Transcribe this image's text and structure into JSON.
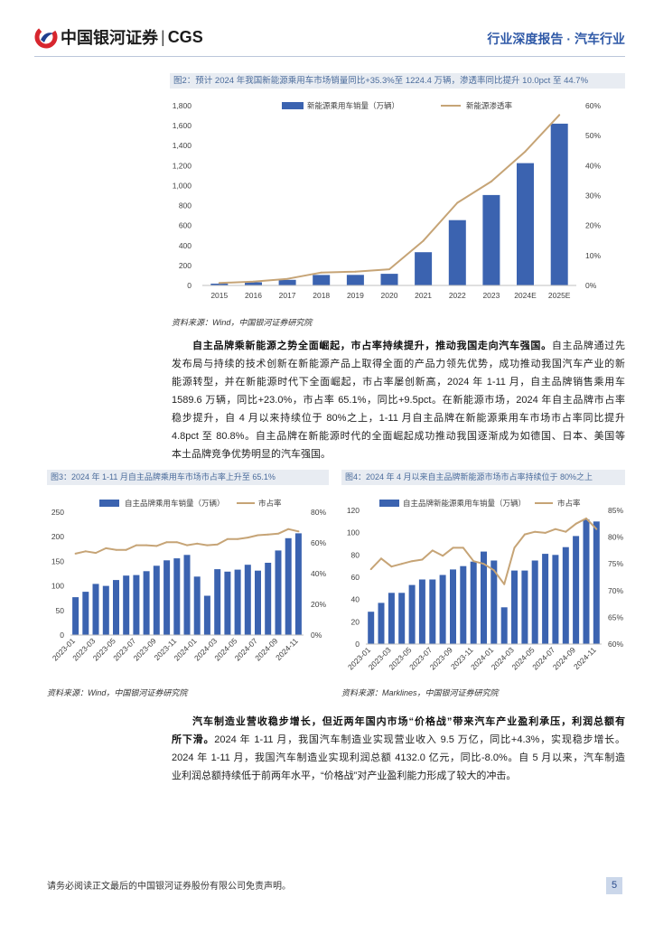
{
  "header": {
    "logo_cn": "中国银河证券",
    "logo_sep": "|",
    "logo_en": "CGS",
    "report_type": "行业深度报告",
    "dot": "·",
    "industry": "汽车行业"
  },
  "colors": {
    "bar": "#3b63b0",
    "line": "#c6a476",
    "accent": "#2f59a7",
    "brand_red": "#d7262e"
  },
  "chart_data": [
    {
      "type": "bar",
      "title": "图2：预计 2024 年我国新能源乘用车市场销量同比+35.3%至 1224.4 万辆，渗透率同比提升 10.0pct 至 44.7%",
      "categories": [
        "2015",
        "2016",
        "2017",
        "2018",
        "2019",
        "2020",
        "2021",
        "2022",
        "2023",
        "2024E",
        "2025E"
      ],
      "series": [
        {
          "name": "新能源乘用车销量（万辆）",
          "type": "bar",
          "values": [
            18,
            32,
            56,
            105,
            106,
            117,
            333,
            654,
            905,
            1224.4,
            1620
          ]
        },
        {
          "name": "新能源渗透率",
          "type": "line",
          "values": [
            0.8,
            1.3,
            2.2,
            4.3,
            4.6,
            5.4,
            14.9,
            27.6,
            34.7,
            44.7,
            56.9
          ]
        }
      ],
      "y_left": {
        "ticks": [
          "0",
          "200",
          "400",
          "600",
          "800",
          "1,000",
          "1,200",
          "1,400",
          "1,600",
          "1,800"
        ],
        "lim": [
          0,
          1800
        ]
      },
      "y_right": {
        "ticks": [
          "0%",
          "10%",
          "20%",
          "30%",
          "40%",
          "50%",
          "60%"
        ],
        "lim": [
          0,
          60
        ]
      },
      "source": "资料来源：Wind，中国银河证券研究院"
    },
    {
      "type": "bar",
      "title": "图3：2024 年 1-11 月自主品牌乘用车市场市占率上升至 65.1%",
      "x_tick_labels": [
        "2023-01",
        "2023-03",
        "2023-05",
        "2023-07",
        "2023-09",
        "2023-11",
        "2024-01",
        "2024-03",
        "2024-05",
        "2024-07",
        "2024-09",
        "2024-11"
      ],
      "series": [
        {
          "name": "自主品牌乘用车销量（万辆）",
          "type": "bar",
          "values": [
            77,
            88,
            104,
            100,
            112,
            121,
            122,
            130,
            141,
            152,
            156,
            163,
            119,
            80,
            134,
            129,
            133,
            143,
            131,
            147,
            172,
            197,
            207
          ]
        },
        {
          "name": "市占率",
          "type": "line",
          "values": [
            53,
            54.5,
            53.5,
            56.5,
            55.5,
            55.5,
            58.5,
            58.5,
            58,
            60.5,
            60.5,
            58.5,
            59.5,
            58.5,
            59,
            62.5,
            62.5,
            63.5,
            65,
            65.5,
            66,
            69,
            67.5
          ]
        }
      ],
      "y_left": {
        "ticks": [
          "0",
          "50",
          "100",
          "150",
          "200",
          "250"
        ],
        "lim": [
          0,
          250
        ]
      },
      "y_right": {
        "ticks": [
          "0%",
          "20%",
          "40%",
          "60%",
          "80%"
        ],
        "lim": [
          0,
          80
        ]
      },
      "source": "资料来源：Wind，中国银河证券研究院"
    },
    {
      "type": "bar",
      "title": "图4：2024 年 4 月以来自主品牌新能源市场市占率持续位于 80%之上",
      "x_tick_labels": [
        "2023-01",
        "2023-03",
        "2023-05",
        "2023-07",
        "2023-09",
        "2023-11",
        "2024-01",
        "2024-03",
        "2024-05",
        "2024-07",
        "2024-09",
        "2024-11"
      ],
      "series": [
        {
          "name": "自主品牌新能源乘用车销量（万辆）",
          "type": "bar",
          "values": [
            29,
            37,
            46,
            46,
            53,
            58,
            58,
            62,
            67,
            70,
            74,
            83,
            75,
            33,
            66,
            66,
            75,
            81,
            80,
            87,
            97,
            112,
            110
          ]
        },
        {
          "name": "市占率",
          "type": "line",
          "values": [
            74,
            76,
            74.5,
            75,
            75.5,
            75.8,
            77.5,
            76.5,
            78,
            78,
            75.5,
            75,
            73.8,
            71.2,
            78,
            80.5,
            81,
            80.8,
            81.5,
            81,
            82.5,
            83.5,
            81.5
          ]
        }
      ],
      "y_left": {
        "ticks": [
          "0",
          "20",
          "40",
          "60",
          "80",
          "100",
          "120"
        ],
        "lim": [
          0,
          120
        ]
      },
      "y_right": {
        "ticks": [
          "60%",
          "65%",
          "70%",
          "75%",
          "80%",
          "85%"
        ],
        "lim": [
          60,
          85
        ]
      },
      "source": "资料来源：Marklines，中国银河证券研究院"
    }
  ],
  "para1": {
    "lead_bold": "自主品牌乘新能源之势全面崛起，市占率持续提升，推动我国走向汽车强国。",
    "lead_rest": "自主品牌通过先",
    "lines": [
      "发布局与持续的技术创新在新能源产品上取得全面的产品力领先优势，成功推动我国汽车产业的新",
      "能源转型，并在新能源时代下全面崛起，市占率屡创新高，2024 年 1-11 月，自主品牌销售乘用车",
      "1589.6 万辆，同比+23.0%，市占率 65.1%，同比+9.5pct。在新能源市场，2024 年自主品牌市占率",
      "稳步提升，自 4 月以来持续位于 80%之上，1-11 月自主品牌在新能源乘用车市场市占率同比提升",
      "4.8pct 至 80.8%。自主品牌在新能源时代的全面崛起成功推动我国逐渐成为如德国、日本、美国等",
      "本土品牌竞争优势明显的汽车强国。"
    ]
  },
  "para2": {
    "lead_bold": "汽车制造业营收稳步增长，但近两年国内市场“价格战”带来汽车产业盈利承压，利润总额有",
    "l2_bold": "所下滑。",
    "l2_rest": "2024 年 1-11 月，我国汽车制造业实现营业收入 9.5 万亿，同比+4.3%，实现稳步增长。",
    "lines": [
      "2024 年 1-11 月，我国汽车制造业实现利润总额 4132.0 亿元，同比-8.0%。自 5 月以来，汽车制造",
      "业利润总额持续低于前两年水平，“价格战”对产业盈利能力形成了较大的冲击。"
    ]
  },
  "footer": {
    "disclaimer": "请务必阅读正文最后的中国银河证券股份有限公司免责声明。",
    "page": "5"
  }
}
